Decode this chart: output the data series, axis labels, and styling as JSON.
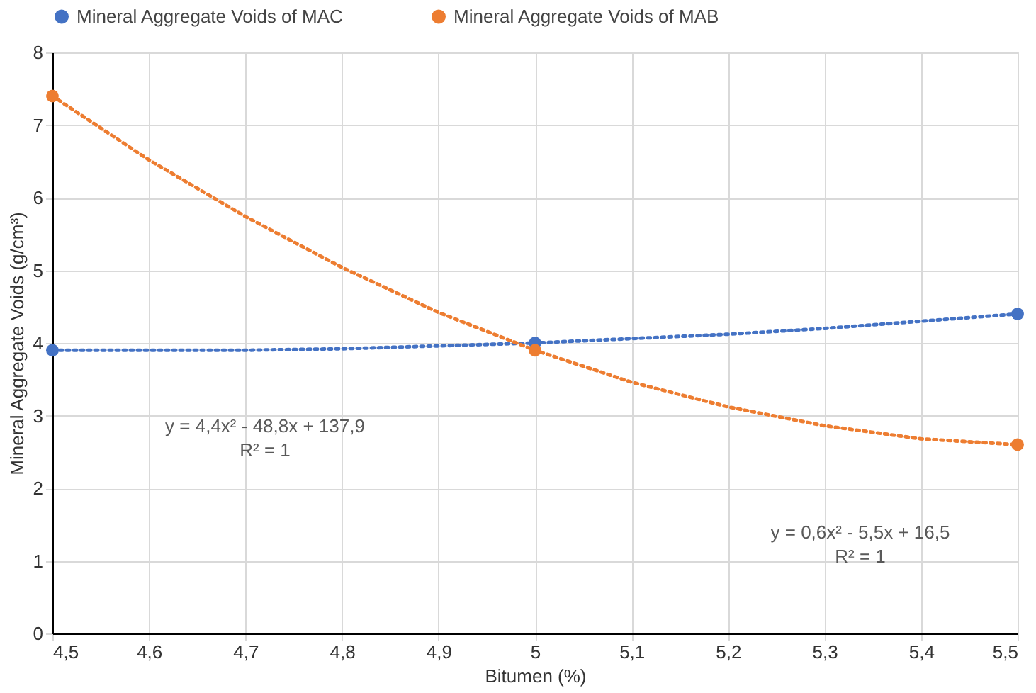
{
  "chart_data": {
    "type": "scatter",
    "xlabel": "Bitumen (%)",
    "ylabel": "Mineral Aggregate Voids (g/cm³)",
    "x": [
      4.5,
      5,
      5.5
    ],
    "series": [
      {
        "name": "Mineral Aggregate Voids of MAC",
        "color": "#4472c4",
        "values": [
          3.9,
          4.0,
          4.4
        ],
        "marker": "circle"
      },
      {
        "name": "Mineral Aggregate Voids of MAB",
        "color": "#ed7d31",
        "values": [
          7.4,
          3.9,
          2.6
        ],
        "marker": "circle"
      },
      {
        "type": "line",
        "color": "#4472c4",
        "line_style": "dotted",
        "marker": "none",
        "x": [
          4.5,
          4.6,
          4.7,
          4.8,
          4.9,
          5,
          5.1,
          5.2,
          5.3,
          5.4,
          5.5
        ],
        "values": [
          3.9,
          3.9,
          3.9,
          3.92,
          3.96,
          4.0,
          4.06,
          4.12,
          4.2,
          4.3,
          4.4
        ]
      },
      {
        "type": "line",
        "color": "#ed7d31",
        "line_style": "dotted",
        "marker": "none",
        "x": [
          4.5,
          4.6,
          4.7,
          4.8,
          4.9,
          5,
          5.1,
          5.2,
          5.3,
          5.4,
          5.5
        ],
        "values": [
          7.4,
          6.52,
          5.74,
          5.04,
          4.42,
          3.9,
          3.46,
          3.12,
          2.86,
          2.68,
          2.6
        ]
      }
    ],
    "xlim": [
      4.5,
      5.5
    ],
    "xticks": [
      {
        "value": 4.5,
        "label": "4,5"
      },
      {
        "value": 4.6,
        "label": "4,6"
      },
      {
        "value": 4.7,
        "label": "4,7"
      },
      {
        "value": 4.8,
        "label": "4,8"
      },
      {
        "value": 4.9,
        "label": "4,9"
      },
      5,
      {
        "value": 5.1,
        "label": "5,1"
      },
      {
        "value": 5.2,
        "label": "5,2"
      },
      {
        "value": 5.3,
        "label": "5,3"
      },
      {
        "value": 5.4,
        "label": "5,4"
      },
      {
        "value": 5.5,
        "label": "5,5"
      }
    ],
    "ylim": [
      0,
      8
    ],
    "yticks": [
      0,
      1,
      2,
      3,
      4,
      5,
      6,
      7,
      8
    ],
    "grid": true,
    "legend": "top",
    "annotations": [
      "y = 4,4x² - 48,8x + 137,9\nR² = 1",
      "y = 0,6x² - 5,5x + 16,5\nR² = 1"
    ]
  }
}
